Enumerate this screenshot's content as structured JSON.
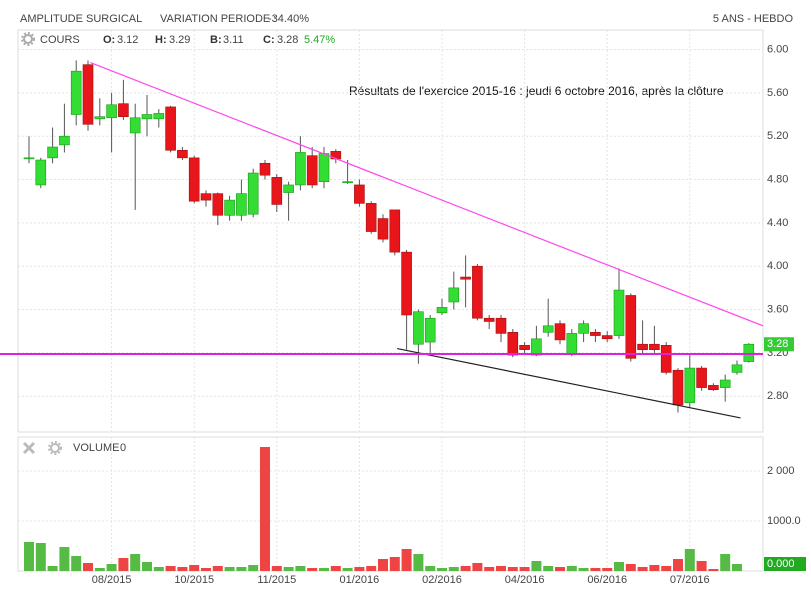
{
  "header": {
    "name": "AMPLITUDE SURGICAL",
    "variation_label": "VARIATION PERIODE :",
    "variation": "-34.40%",
    "period": "5 ANS - HEBDO"
  },
  "chart_data": [
    {
      "type": "candlestick",
      "legend_label": "COURS",
      "info": [
        {
          "label": "O:",
          "value": "3.12"
        },
        {
          "label": "H:",
          "value": "3.29"
        },
        {
          "label": "B:",
          "value": "3.11"
        },
        {
          "label": "C:",
          "value": "3.28"
        }
      ],
      "change": "5.47%",
      "annotation": "Résultats de l'exercice 2015-16 : jeudi 6 octobre 2016, après la clôture",
      "categories": [
        null,
        null,
        null,
        null,
        null,
        null,
        null,
        "08/2015",
        null,
        null,
        null,
        null,
        null,
        null,
        "10/2015",
        null,
        null,
        null,
        null,
        null,
        null,
        "11/2015",
        null,
        null,
        null,
        null,
        null,
        null,
        "01/2016",
        null,
        null,
        null,
        null,
        null,
        null,
        "02/2016",
        null,
        null,
        null,
        null,
        null,
        null,
        "04/2016",
        null,
        null,
        null,
        null,
        null,
        null,
        "06/2016",
        null,
        null,
        null,
        null,
        null,
        null,
        "07/2016",
        null,
        null,
        null,
        null,
        null
      ],
      "open": [
        5.0,
        4.75,
        5.0,
        5.12,
        5.4,
        5.86,
        5.36,
        5.37,
        5.5,
        5.23,
        5.36,
        5.36,
        5.47,
        5.07,
        5.0,
        4.67,
        4.67,
        4.47,
        4.47,
        4.48,
        4.95,
        4.82,
        4.68,
        4.75,
        5.02,
        4.78,
        5.06,
        4.78,
        4.75,
        4.58,
        4.44,
        4.52,
        4.13,
        3.28,
        3.3,
        3.57,
        3.67,
        3.9,
        4.0,
        3.52,
        3.52,
        3.39,
        3.27,
        3.18,
        3.39,
        3.47,
        3.19,
        3.38,
        3.39,
        3.36,
        3.36,
        3.73,
        3.28,
        3.28,
        3.27,
        3.04,
        2.74,
        3.06,
        2.9,
        2.88,
        3.02,
        3.12
      ],
      "high": [
        5.2,
        5.0,
        5.28,
        5.5,
        5.9,
        5.9,
        5.55,
        5.6,
        5.72,
        5.5,
        5.58,
        5.45,
        5.48,
        5.1,
        5.02,
        4.7,
        4.68,
        4.65,
        4.8,
        4.9,
        4.98,
        4.85,
        4.78,
        5.2,
        5.1,
        5.1,
        5.08,
        4.98,
        4.8,
        4.6,
        4.48,
        4.52,
        4.15,
        3.6,
        3.55,
        3.7,
        3.95,
        4.1,
        4.02,
        3.55,
        3.55,
        3.42,
        3.3,
        3.45,
        3.7,
        3.5,
        3.42,
        3.5,
        3.42,
        3.4,
        3.98,
        3.75,
        3.5,
        3.45,
        3.3,
        3.06,
        3.18,
        3.08,
        2.92,
        3.0,
        3.13,
        3.29
      ],
      "low": [
        4.95,
        4.72,
        4.95,
        5.05,
        5.3,
        5.25,
        5.3,
        5.05,
        5.35,
        4.52,
        5.2,
        5.28,
        5.05,
        4.98,
        4.58,
        4.55,
        4.38,
        4.42,
        4.42,
        4.45,
        4.8,
        4.5,
        4.42,
        4.7,
        4.72,
        4.72,
        4.95,
        4.76,
        4.55,
        4.3,
        4.22,
        4.1,
        3.23,
        3.1,
        3.2,
        3.55,
        3.6,
        3.62,
        3.5,
        3.42,
        3.3,
        3.16,
        3.18,
        3.17,
        3.35,
        3.28,
        3.17,
        3.3,
        3.3,
        3.3,
        3.33,
        3.12,
        3.18,
        3.2,
        3.0,
        2.65,
        2.7,
        2.85,
        2.85,
        2.75,
        3.0,
        3.11
      ],
      "close": [
        5.0,
        4.98,
        5.1,
        5.2,
        5.8,
        5.31,
        5.38,
        5.49,
        5.38,
        5.37,
        5.4,
        5.41,
        5.07,
        5.0,
        4.6,
        4.61,
        4.47,
        4.61,
        4.67,
        4.86,
        4.84,
        4.57,
        4.75,
        5.05,
        4.75,
        5.04,
        4.99,
        4.78,
        4.58,
        4.32,
        4.25,
        4.13,
        3.55,
        3.58,
        3.52,
        3.62,
        3.8,
        3.88,
        3.52,
        3.49,
        3.38,
        3.18,
        3.23,
        3.33,
        3.45,
        3.32,
        3.38,
        3.47,
        3.36,
        3.33,
        3.78,
        3.15,
        3.23,
        3.23,
        3.02,
        2.72,
        3.06,
        2.88,
        2.86,
        2.95,
        3.09,
        3.28
      ],
      "up_color": "#33dd33",
      "down_color": "#e8161b",
      "ylim": [
        2.47,
        6.18
      ],
      "yticks": [
        {
          "value": 6.0,
          "label": "6.00"
        },
        {
          "value": 5.6,
          "label": "5.60"
        },
        {
          "value": 5.2,
          "label": "5.20"
        },
        {
          "value": 4.8,
          "label": "4.80"
        },
        {
          "value": 4.4,
          "label": "4.40"
        },
        {
          "value": 4.0,
          "label": "4.00"
        },
        {
          "value": 3.6,
          "label": "3.60"
        },
        {
          "value": 3.2,
          "label": "3.20"
        },
        {
          "value": 2.8,
          "label": "2.80"
        }
      ],
      "grid": true,
      "lines": [
        {
          "x": [
            5.2,
            62.2
          ],
          "y": [
            5.88,
            3.45
          ],
          "color": "#ff44ee"
        },
        {
          "x": [
            31.2,
            60.3
          ],
          "y": [
            3.24,
            2.6
          ],
          "color": "#222222"
        }
      ],
      "hline": {
        "value": 3.19,
        "color": "#e020e0"
      },
      "last_price": {
        "value": 3.28,
        "label": "3.28"
      }
    },
    {
      "type": "bar",
      "name": "VOLUME",
      "current": "0",
      "values": [
        580,
        560,
        100,
        480,
        300,
        160,
        60,
        140,
        260,
        340,
        180,
        80,
        100,
        80,
        120,
        60,
        100,
        80,
        80,
        120,
        2480,
        100,
        80,
        100,
        60,
        60,
        100,
        60,
        80,
        100,
        240,
        280,
        440,
        340,
        100,
        60,
        80,
        100,
        160,
        80,
        100,
        80,
        80,
        200,
        100,
        80,
        100,
        60,
        60,
        60,
        180,
        140,
        80,
        120,
        100,
        240,
        440,
        200,
        40,
        340,
        140,
        0
      ],
      "ylim": [
        0,
        2680
      ],
      "yticks": [
        {
          "value": 2000,
          "label": "2 000"
        },
        {
          "value": 1000,
          "label": "1000.0"
        }
      ],
      "last_value": {
        "value": 0,
        "label": "0.000"
      }
    }
  ]
}
